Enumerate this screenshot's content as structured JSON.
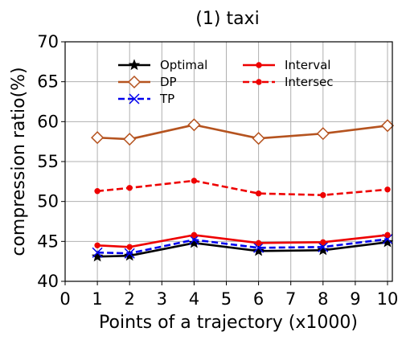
{
  "chart_data": {
    "type": "line",
    "title": "(1) taxi",
    "xlabel": "Points of a trajectory (x1000)",
    "ylabel": "compression ratio(%)",
    "xlim": [
      0,
      10.15
    ],
    "ylim": [
      40,
      70
    ],
    "xticks": [
      "0",
      "1",
      "2",
      "3",
      "4",
      "5",
      "6",
      "7",
      "8",
      "9",
      "10"
    ],
    "yticks": [
      "40",
      "45",
      "50",
      "55",
      "60",
      "65",
      "70"
    ],
    "grid": true,
    "legend_position": "top",
    "x": [
      1,
      2,
      4,
      6,
      8,
      10
    ],
    "series": [
      {
        "name": "Optimal",
        "values": [
          43.1,
          43.2,
          44.8,
          43.8,
          43.9,
          44.9
        ],
        "color": "#000000",
        "marker": "star",
        "dash": "solid"
      },
      {
        "name": "DP",
        "values": [
          58.0,
          57.8,
          59.6,
          57.9,
          58.5,
          59.5
        ],
        "color": "#b5531f",
        "marker": "diamond",
        "dash": "solid"
      },
      {
        "name": "TP",
        "values": [
          43.6,
          43.5,
          45.2,
          44.2,
          44.3,
          45.3
        ],
        "color": "#0000ee",
        "marker": "x",
        "dash": "dashed"
      },
      {
        "name": "Interval",
        "values": [
          44.5,
          44.3,
          45.8,
          44.8,
          44.9,
          45.8
        ],
        "color": "#ee0000",
        "marker": "dot",
        "dash": "solid"
      },
      {
        "name": "Intersec",
        "values": [
          51.3,
          51.7,
          52.6,
          51.0,
          50.8,
          51.5
        ],
        "color": "#ee0000",
        "marker": "dot",
        "dash": "dashed"
      }
    ]
  }
}
